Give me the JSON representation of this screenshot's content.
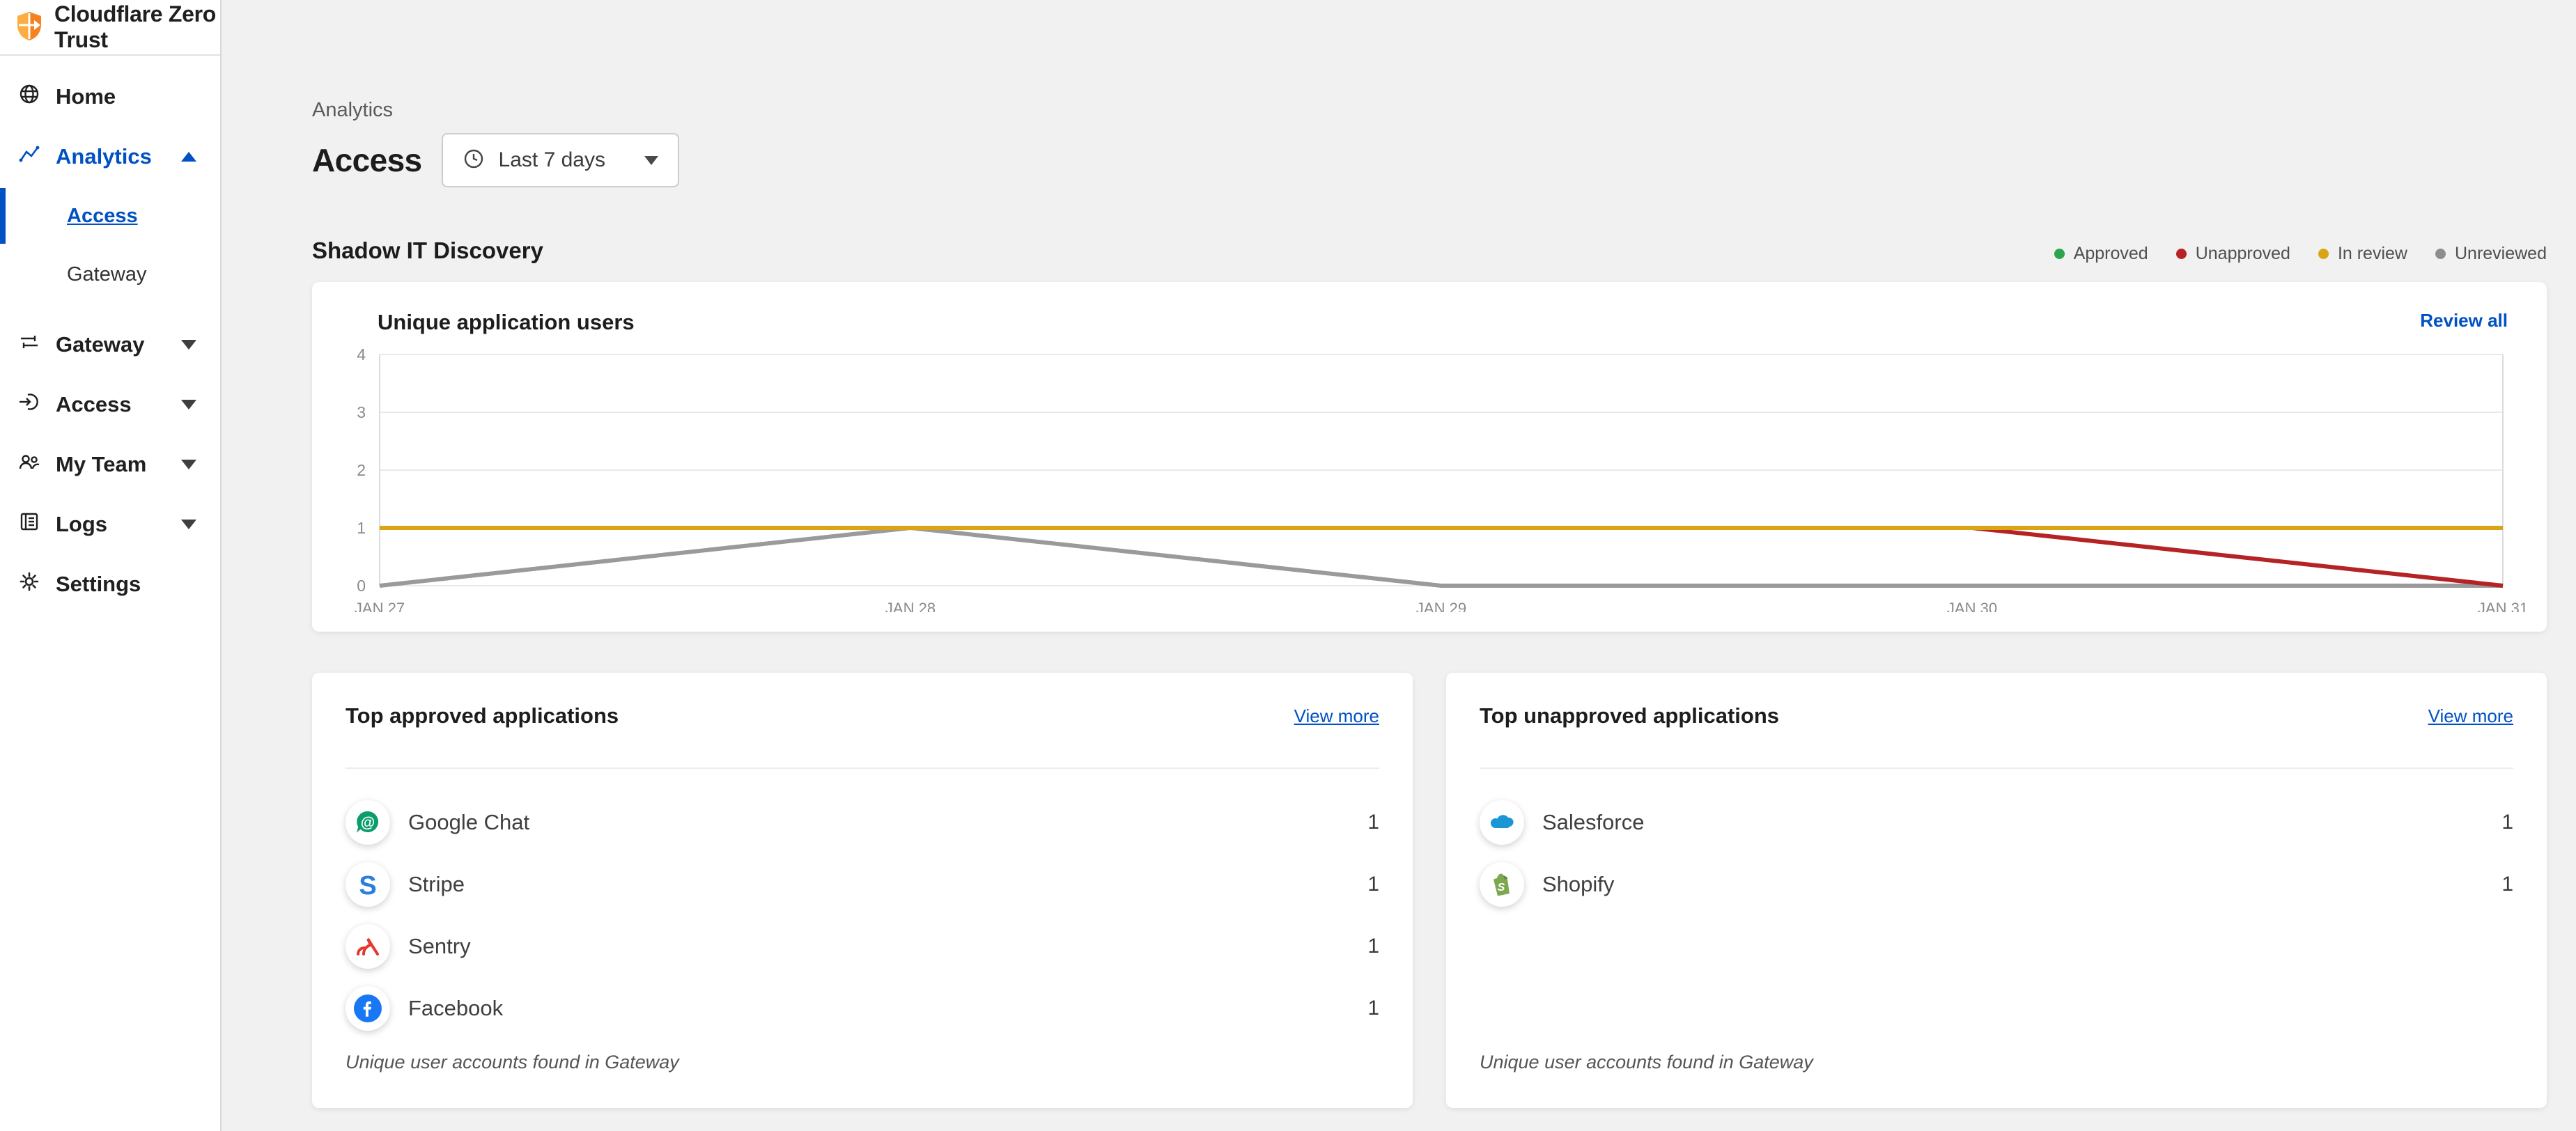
{
  "app": {
    "title": "Cloudflare Zero Trust"
  },
  "sidebar": {
    "items": [
      {
        "label": "Home"
      },
      {
        "label": "Analytics",
        "expanded": true,
        "active": true,
        "children": [
          {
            "label": "Access",
            "active": true
          },
          {
            "label": "Gateway"
          }
        ]
      },
      {
        "label": "Gateway"
      },
      {
        "label": "Access"
      },
      {
        "label": "My Team"
      },
      {
        "label": "Logs"
      },
      {
        "label": "Settings"
      }
    ]
  },
  "header": {
    "breadcrumb": "Analytics",
    "title": "Access",
    "time_range": "Last 7 days"
  },
  "section": {
    "title": "Shadow IT Discovery",
    "legend": [
      {
        "label": "Approved",
        "color": "#2da44e"
      },
      {
        "label": "Unapproved",
        "color": "#b62324"
      },
      {
        "label": "In review",
        "color": "#d9a514"
      },
      {
        "label": "Unreviewed",
        "color": "#8d8d8d"
      }
    ]
  },
  "chart_card": {
    "title": "Unique application users",
    "action": "Review all"
  },
  "chart_data": {
    "type": "line",
    "title": "Unique application users",
    "x": [
      "JAN 27",
      "JAN 28",
      "JAN 29",
      "JAN 30",
      "JAN 31"
    ],
    "series": [
      {
        "name": "Unreviewed",
        "color": "#9a9a9a",
        "values": [
          0,
          1,
          0,
          0,
          0
        ]
      },
      {
        "name": "Unapproved",
        "color": "#b62324",
        "values": [
          null,
          null,
          null,
          1,
          0
        ]
      },
      {
        "name": "In review",
        "color": "#d9a514",
        "values": [
          1,
          1,
          1,
          1,
          1
        ]
      }
    ],
    "legend": [
      "Approved",
      "Unapproved",
      "In review",
      "Unreviewed"
    ],
    "legend_position": "top-right",
    "xlabel": "",
    "ylabel": "",
    "ylim": [
      0,
      4
    ],
    "yticks": [
      0,
      1,
      2,
      3,
      4
    ],
    "grid": true
  },
  "approved_card": {
    "title": "Top approved applications",
    "action": "View more",
    "rows": [
      {
        "name": "Google Chat",
        "value": "1"
      },
      {
        "name": "Stripe",
        "value": "1"
      },
      {
        "name": "Sentry",
        "value": "1"
      },
      {
        "name": "Facebook",
        "value": "1"
      }
    ],
    "footnote": "Unique user accounts found in Gateway"
  },
  "unapproved_card": {
    "title": "Top unapproved applications",
    "action": "View more",
    "rows": [
      {
        "name": "Salesforce",
        "value": "1"
      },
      {
        "name": "Shopify",
        "value": "1"
      }
    ],
    "footnote": "Unique user accounts found in Gateway"
  }
}
